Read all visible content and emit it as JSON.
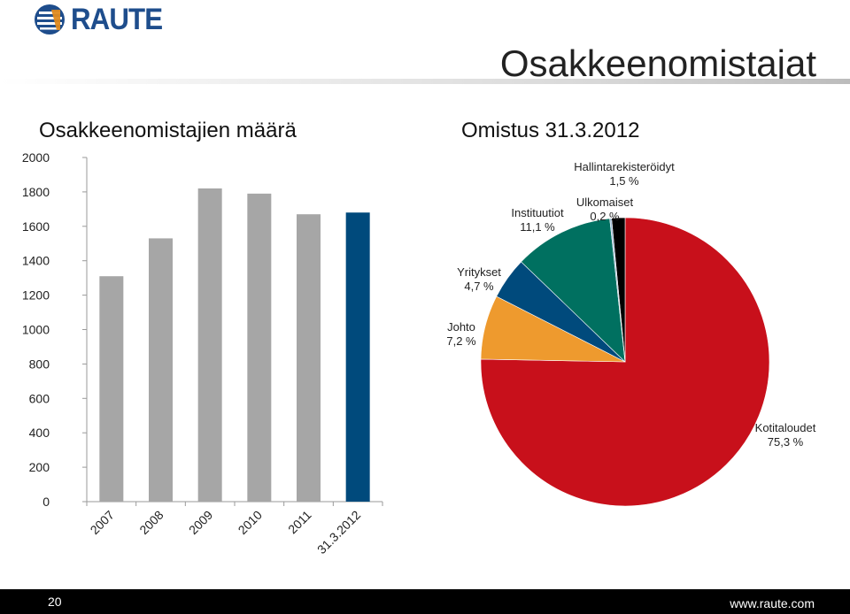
{
  "header": {
    "logo_text": "RAUTE",
    "title": "Osakkeenomistajat"
  },
  "colors": {
    "brand": "#1e4d8c",
    "bar_gray": "#a6a6a6",
    "bar_highlight": "#004a7c"
  },
  "chart_data": [
    {
      "type": "bar",
      "title": "Osakkeenomistajien määrä",
      "categories": [
        "2007",
        "2008",
        "2009",
        "2010",
        "2011",
        "31.3.2012"
      ],
      "values": [
        1310,
        1530,
        1820,
        1790,
        1670,
        1680
      ],
      "highlight_index": 5,
      "ylim": [
        0,
        2000
      ],
      "yticks": [
        0,
        200,
        400,
        600,
        800,
        1000,
        1200,
        1400,
        1600,
        1800,
        2000
      ],
      "grid": false
    },
    {
      "type": "pie",
      "title": "Omistus 31.3.2012",
      "slices": [
        {
          "label": "Kotitaloudet",
          "value_label": "75,3 %",
          "value": 75.3,
          "color": "#c8101b"
        },
        {
          "label": "Johto",
          "value_label": "7,2 %",
          "value": 7.2,
          "color": "#ee9a2e"
        },
        {
          "label": "Yritykset",
          "value_label": "4,7 %",
          "value": 4.7,
          "color": "#004a7c"
        },
        {
          "label": "Instituutiot",
          "value_label": "11,1 %",
          "value": 11.1,
          "color": "#007060"
        },
        {
          "label": "Ulkomaiset",
          "value_label": "0,2 %",
          "value": 0.2,
          "color": "#9dbad6"
        },
        {
          "label": "Hallintarekisteröidyt",
          "value_label": "1,5 %",
          "value": 1.5,
          "color": "#000000"
        }
      ]
    }
  ],
  "footer": {
    "page_number": "20",
    "url": "www.raute.com"
  }
}
